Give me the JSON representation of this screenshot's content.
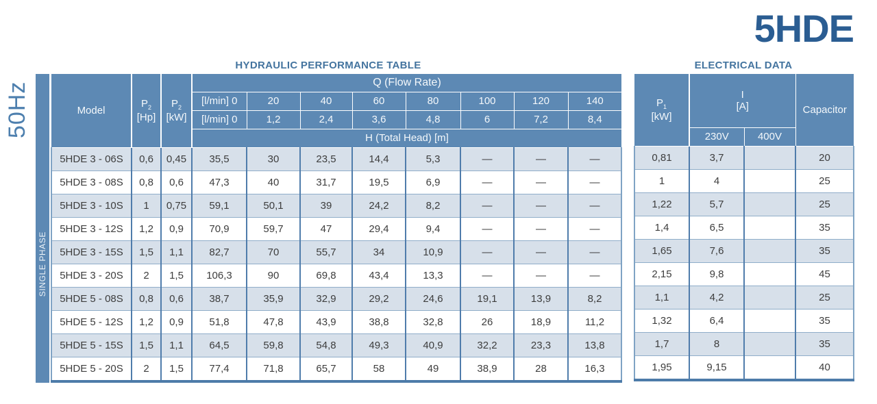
{
  "page": {
    "product_title": "5HDE",
    "frequency_label": "50Hz",
    "phase_label": "SINGLE PHASE"
  },
  "colors": {
    "header_steel_blue": "#5d89b4",
    "stripe_light_blue": "#d7e0ea",
    "title_dark_blue": "#2b5d92",
    "section_title_blue": "#44749f",
    "border_blue": "#4f7cab"
  },
  "hydraulic": {
    "section_title": "HYDRAULIC PERFORMANCE TABLE",
    "header": {
      "model": "Model",
      "p2_symbol": "P",
      "p2_sub": "2",
      "p2_hp_unit": "[Hp]",
      "p2_kw_unit": "[kW]",
      "q_title": "Q (Flow Rate)",
      "q_row_lmin": [
        "[l/min] 0",
        "20",
        "40",
        "60",
        "80",
        "100",
        "120",
        "140"
      ],
      "q_row_m3h": [
        "[l/min] 0",
        "1,2",
        "2,4",
        "3,6",
        "4,8",
        "6",
        "7,2",
        "8,4"
      ],
      "h_title": "H (Total Head) [m]"
    },
    "rows": [
      {
        "model": "5HDE 3 - 06S",
        "p2_hp": "0,6",
        "p2_kw": "0,45",
        "h": [
          "35,5",
          "30",
          "23,5",
          "14,4",
          "5,3",
          "—",
          "—",
          "—"
        ]
      },
      {
        "model": "5HDE 3 - 08S",
        "p2_hp": "0,8",
        "p2_kw": "0,6",
        "h": [
          "47,3",
          "40",
          "31,7",
          "19,5",
          "6,9",
          "—",
          "—",
          "—"
        ]
      },
      {
        "model": "5HDE 3 - 10S",
        "p2_hp": "1",
        "p2_kw": "0,75",
        "h": [
          "59,1",
          "50,1",
          "39",
          "24,2",
          "8,2",
          "—",
          "—",
          "—"
        ]
      },
      {
        "model": "5HDE 3 - 12S",
        "p2_hp": "1,2",
        "p2_kw": "0,9",
        "h": [
          "70,9",
          "59,7",
          "47",
          "29,4",
          "9,4",
          "—",
          "—",
          "—"
        ]
      },
      {
        "model": "5HDE 3 - 15S",
        "p2_hp": "1,5",
        "p2_kw": "1,1",
        "h": [
          "82,7",
          "70",
          "55,7",
          "34",
          "10,9",
          "—",
          "—",
          "—"
        ]
      },
      {
        "model": "5HDE 3 - 20S",
        "p2_hp": "2",
        "p2_kw": "1,5",
        "h": [
          "106,3",
          "90",
          "69,8",
          "43,4",
          "13,3",
          "—",
          "—",
          "—"
        ]
      },
      {
        "model": "5HDE 5 - 08S",
        "p2_hp": "0,8",
        "p2_kw": "0,6",
        "h": [
          "38,7",
          "35,9",
          "32,9",
          "29,2",
          "24,6",
          "19,1",
          "13,9",
          "8,2"
        ]
      },
      {
        "model": "5HDE 5 - 12S",
        "p2_hp": "1,2",
        "p2_kw": "0,9",
        "h": [
          "51,8",
          "47,8",
          "43,9",
          "38,8",
          "32,8",
          "26",
          "18,9",
          "11,2"
        ]
      },
      {
        "model": "5HDE 5 - 15S",
        "p2_hp": "1,5",
        "p2_kw": "1,1",
        "h": [
          "64,5",
          "59,8",
          "54,8",
          "49,3",
          "40,9",
          "32,2",
          "23,3",
          "13,8"
        ]
      },
      {
        "model": "5HDE 5 - 20S",
        "p2_hp": "2",
        "p2_kw": "1,5",
        "h": [
          "77,4",
          "71,8",
          "65,7",
          "58",
          "49",
          "38,9",
          "28",
          "16,3"
        ]
      }
    ]
  },
  "electrical": {
    "section_title": "ELECTRICAL DATA",
    "header": {
      "p1_symbol": "P",
      "p1_sub": "1",
      "p1_unit": "[kW]",
      "i_symbol": "I",
      "i_unit": "[A]",
      "v230": "230V",
      "v400": "400V",
      "capacitor": "Capacitor"
    },
    "rows": [
      {
        "p1": "0,81",
        "i230": "3,7",
        "i400": "",
        "capacitor": "20"
      },
      {
        "p1": "1",
        "i230": "4",
        "i400": "",
        "capacitor": "25"
      },
      {
        "p1": "1,22",
        "i230": "5,7",
        "i400": "",
        "capacitor": "25"
      },
      {
        "p1": "1,4",
        "i230": "6,5",
        "i400": "",
        "capacitor": "35"
      },
      {
        "p1": "1,65",
        "i230": "7,6",
        "i400": "",
        "capacitor": "35"
      },
      {
        "p1": "2,15",
        "i230": "9,8",
        "i400": "",
        "capacitor": "45"
      },
      {
        "p1": "1,1",
        "i230": "4,2",
        "i400": "",
        "capacitor": "25"
      },
      {
        "p1": "1,32",
        "i230": "6,4",
        "i400": "",
        "capacitor": "35"
      },
      {
        "p1": "1,7",
        "i230": "8",
        "i400": "",
        "capacitor": "35"
      },
      {
        "p1": "1,95",
        "i230": "9,15",
        "i400": "",
        "capacitor": "40"
      }
    ]
  }
}
